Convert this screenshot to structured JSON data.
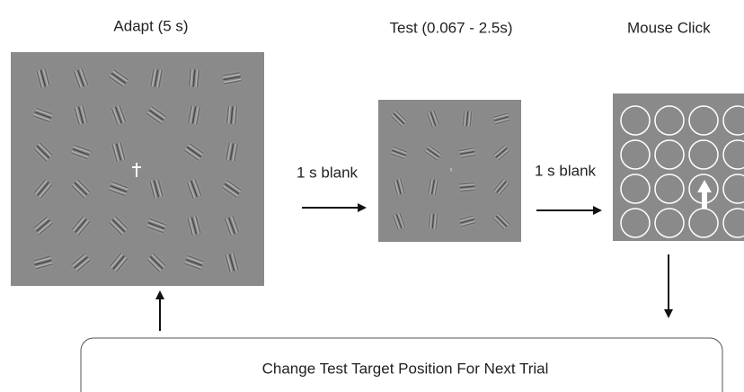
{
  "stages": [
    {
      "label": "Adapt (5 s)"
    },
    {
      "label": "Test (0.067 - 2.5s)"
    },
    {
      "label": "Mouse  Click"
    }
  ],
  "transitions": [
    {
      "label": "1 s blank"
    },
    {
      "label": "1 s blank"
    }
  ],
  "feedback": {
    "label": "Change Test Target Position For Next Trial"
  }
}
